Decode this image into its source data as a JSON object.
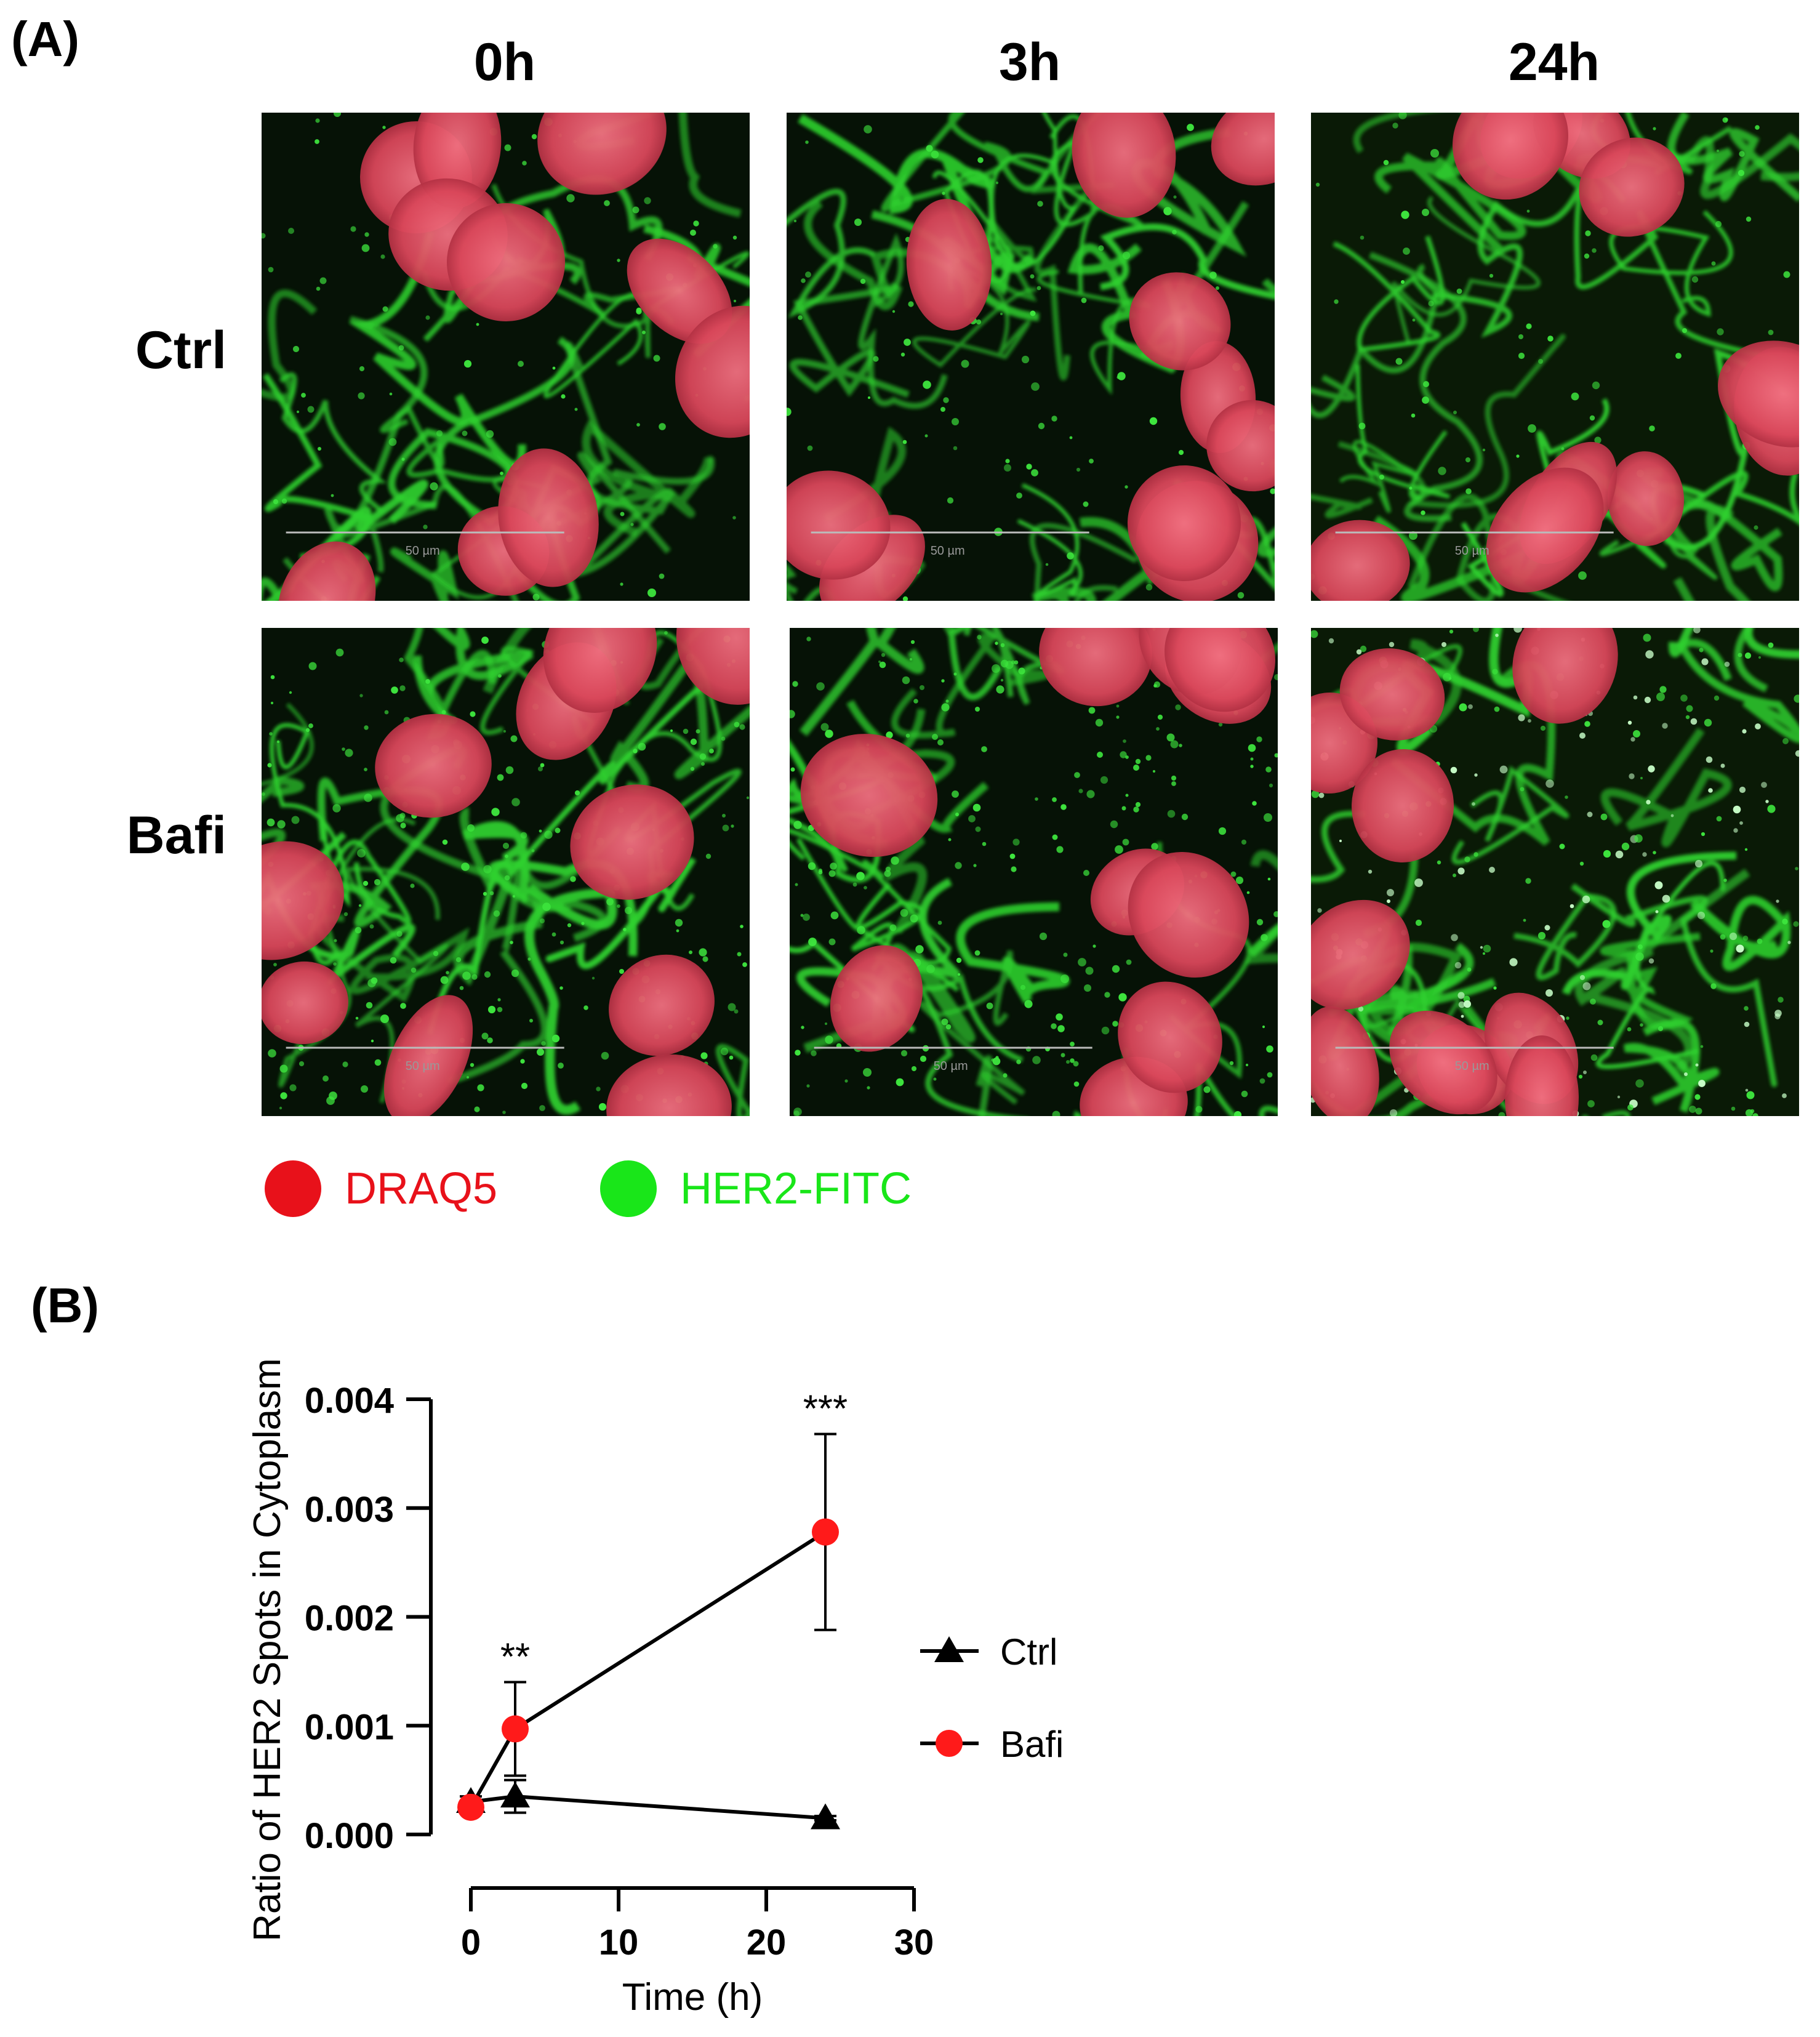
{
  "panel_a": {
    "label": "(A)",
    "columns": [
      "0h",
      "3h",
      "24h"
    ],
    "rows": [
      "Ctrl",
      "Bafi"
    ],
    "scale_bar": "50 µm",
    "legend": [
      {
        "label": "DRAQ5",
        "color": "#e8111a"
      },
      {
        "label": "HER2-FITC",
        "color": "#19e619"
      }
    ]
  },
  "panel_b": {
    "label": "(B)"
  },
  "chart_data": {
    "type": "line",
    "xlabel": "Time (h)",
    "ylabel": "Ratio of HER2 Spots in Cytoplasm",
    "xlim": [
      0,
      30
    ],
    "ylim": [
      0,
      0.004
    ],
    "xticks": [
      "0",
      "10",
      "20",
      "30"
    ],
    "yticks": [
      "0.000",
      "0.001",
      "0.002",
      "0.003",
      "0.004"
    ],
    "legend_position": "right",
    "series": [
      {
        "name": "Ctrl",
        "marker": "triangle",
        "color": "#000000",
        "x": [
          0,
          3,
          24
        ],
        "y": [
          0.0003,
          0.00035,
          0.00015
        ],
        "err": [
          5e-05,
          0.00015,
          2e-05
        ]
      },
      {
        "name": "Bafi",
        "marker": "circle",
        "color": "#ff1a1a",
        "x": [
          0,
          3,
          24
        ],
        "y": [
          0.00025,
          0.00097,
          0.00278
        ],
        "err": [
          3e-05,
          0.00043,
          0.0009
        ]
      }
    ],
    "annotations": [
      {
        "x": 3,
        "text": "**",
        "above_y": 0.0014
      },
      {
        "x": 24,
        "text": "***",
        "above_y": 0.00368
      }
    ]
  }
}
